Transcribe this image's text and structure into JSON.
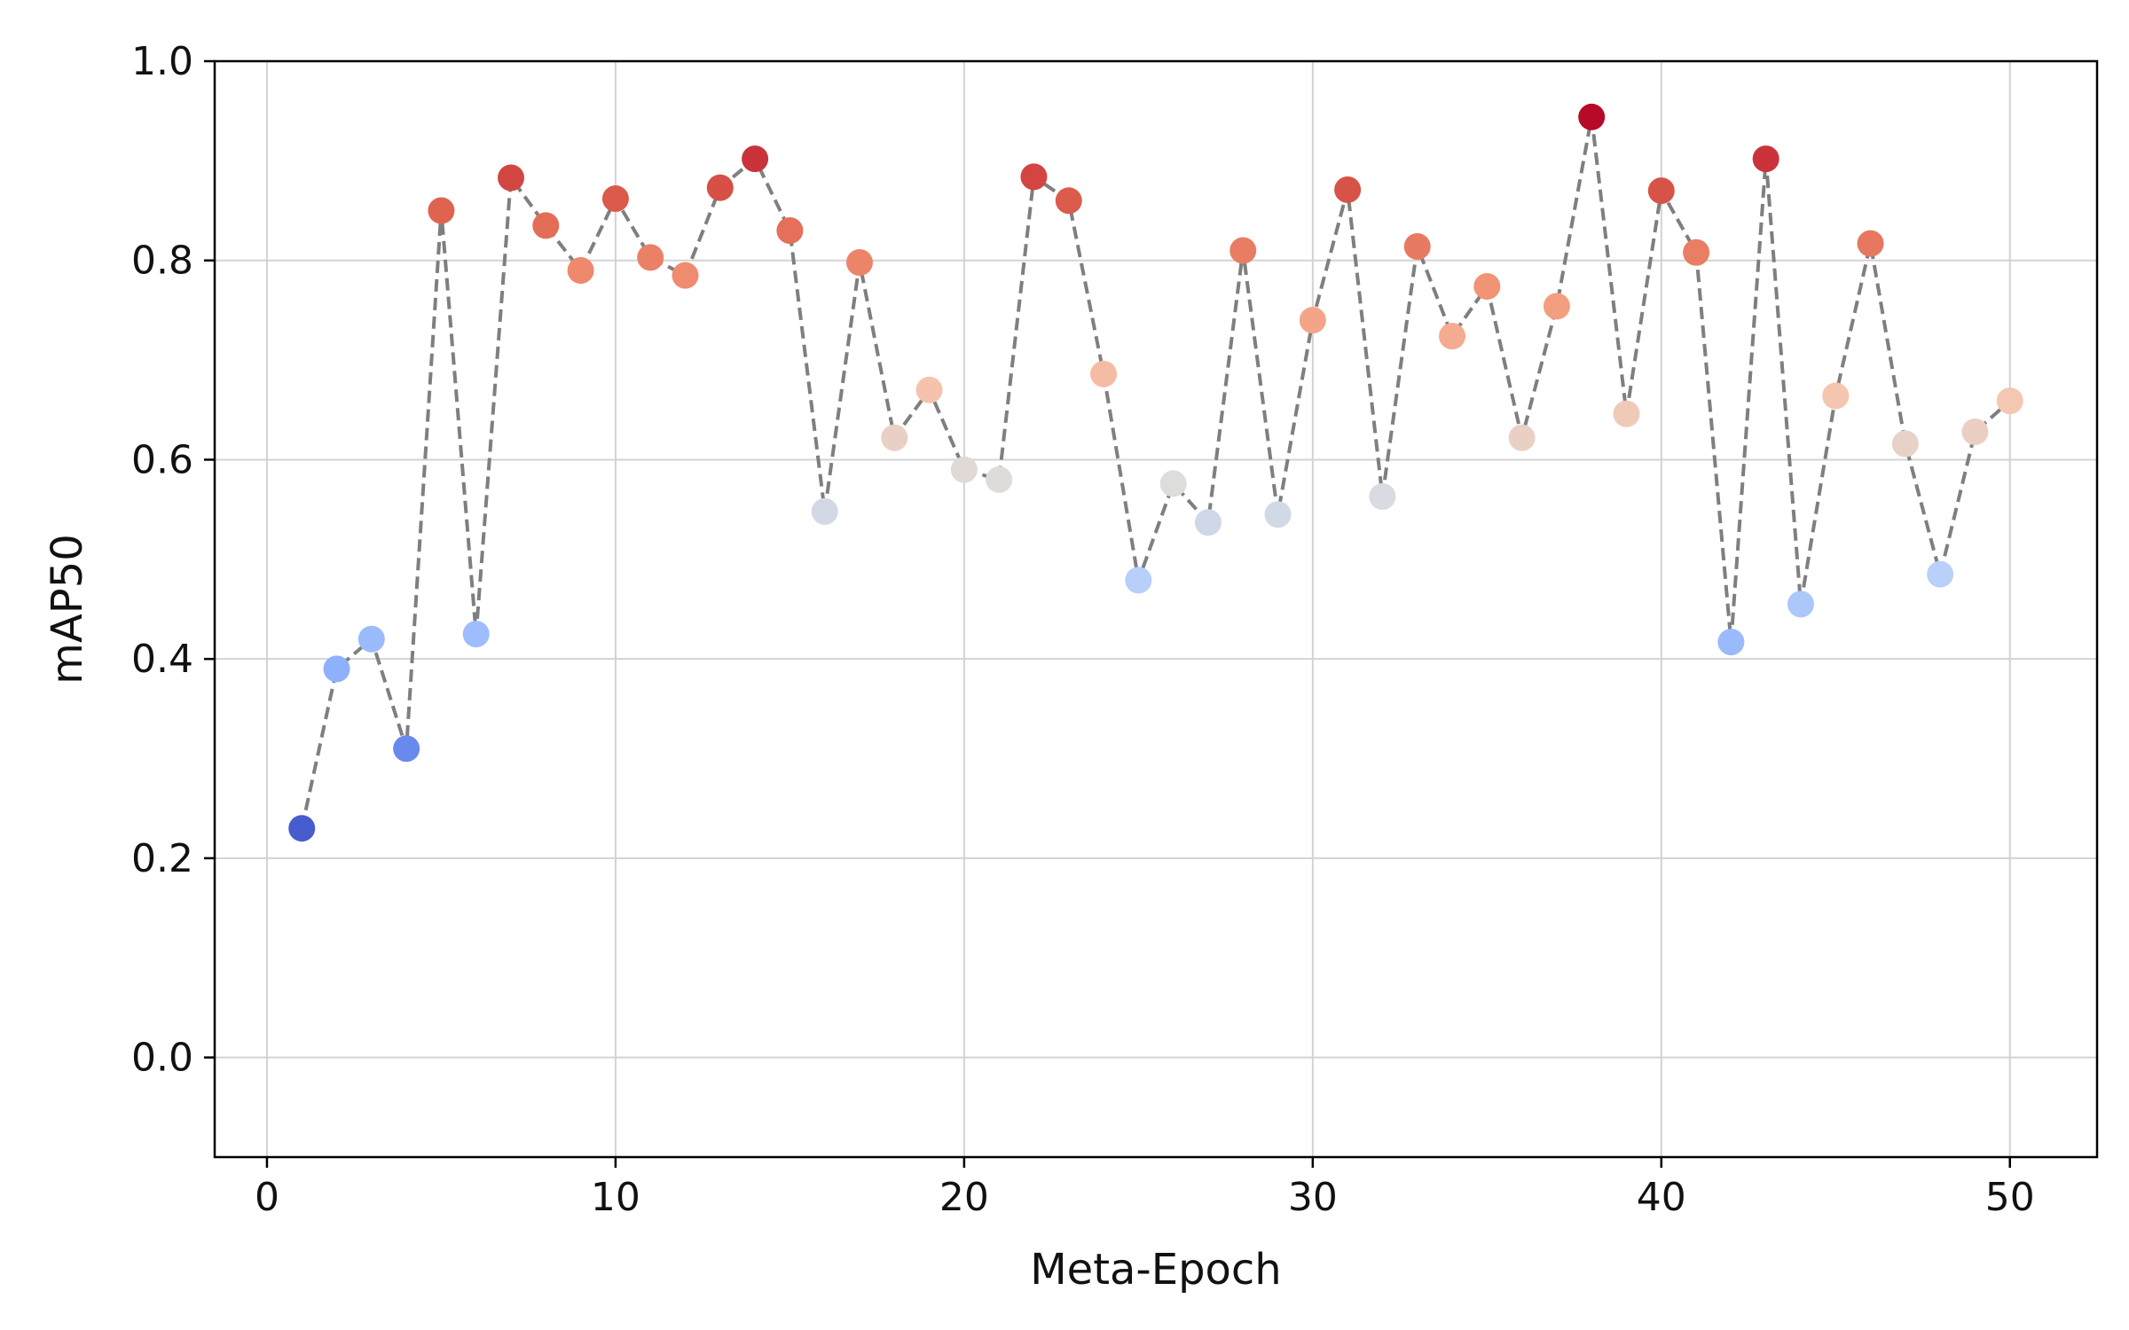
{
  "chart_data": {
    "type": "scatter",
    "xlabel": "Meta-Epoch",
    "ylabel": "mAP50",
    "xlim": [
      -1.5,
      52.5
    ],
    "ylim": [
      -0.1,
      1.0
    ],
    "x_ticks": [
      0,
      10,
      20,
      30,
      40,
      50
    ],
    "y_ticks": [
      0.0,
      0.2,
      0.4,
      0.6,
      0.8,
      1.0
    ],
    "x_tick_labels": [
      "0",
      "10",
      "20",
      "30",
      "40",
      "50"
    ],
    "y_tick_labels": [
      "0.0",
      "0.2",
      "0.4",
      "0.6",
      "0.8",
      "1.0"
    ],
    "grid": true,
    "connector_color": "#7f7f7f",
    "colormap": "coolwarm",
    "color_range": [
      0.2,
      0.95
    ],
    "series": [
      {
        "name": "mAP50",
        "x": [
          1,
          2,
          3,
          4,
          5,
          6,
          7,
          8,
          9,
          10,
          11,
          12,
          13,
          14,
          15,
          16,
          17,
          18,
          19,
          20,
          21,
          22,
          23,
          24,
          25,
          26,
          27,
          28,
          29,
          30,
          31,
          32,
          33,
          34,
          35,
          36,
          37,
          38,
          39,
          40,
          41,
          42,
          43,
          44,
          45,
          46,
          47,
          48,
          49,
          50
        ],
        "y": [
          0.23,
          0.39,
          0.42,
          0.31,
          0.85,
          0.425,
          0.883,
          0.835,
          0.79,
          0.862,
          0.803,
          0.785,
          0.873,
          0.902,
          0.83,
          0.548,
          0.798,
          0.622,
          0.67,
          0.59,
          0.58,
          0.884,
          0.86,
          0.686,
          0.479,
          0.576,
          0.537,
          0.81,
          0.545,
          0.74,
          0.871,
          0.563,
          0.814,
          0.724,
          0.774,
          0.622,
          0.754,
          0.944,
          0.646,
          0.87,
          0.808,
          0.417,
          0.902,
          0.455,
          0.664,
          0.817,
          0.616,
          0.485,
          0.628,
          0.659
        ]
      }
    ]
  }
}
